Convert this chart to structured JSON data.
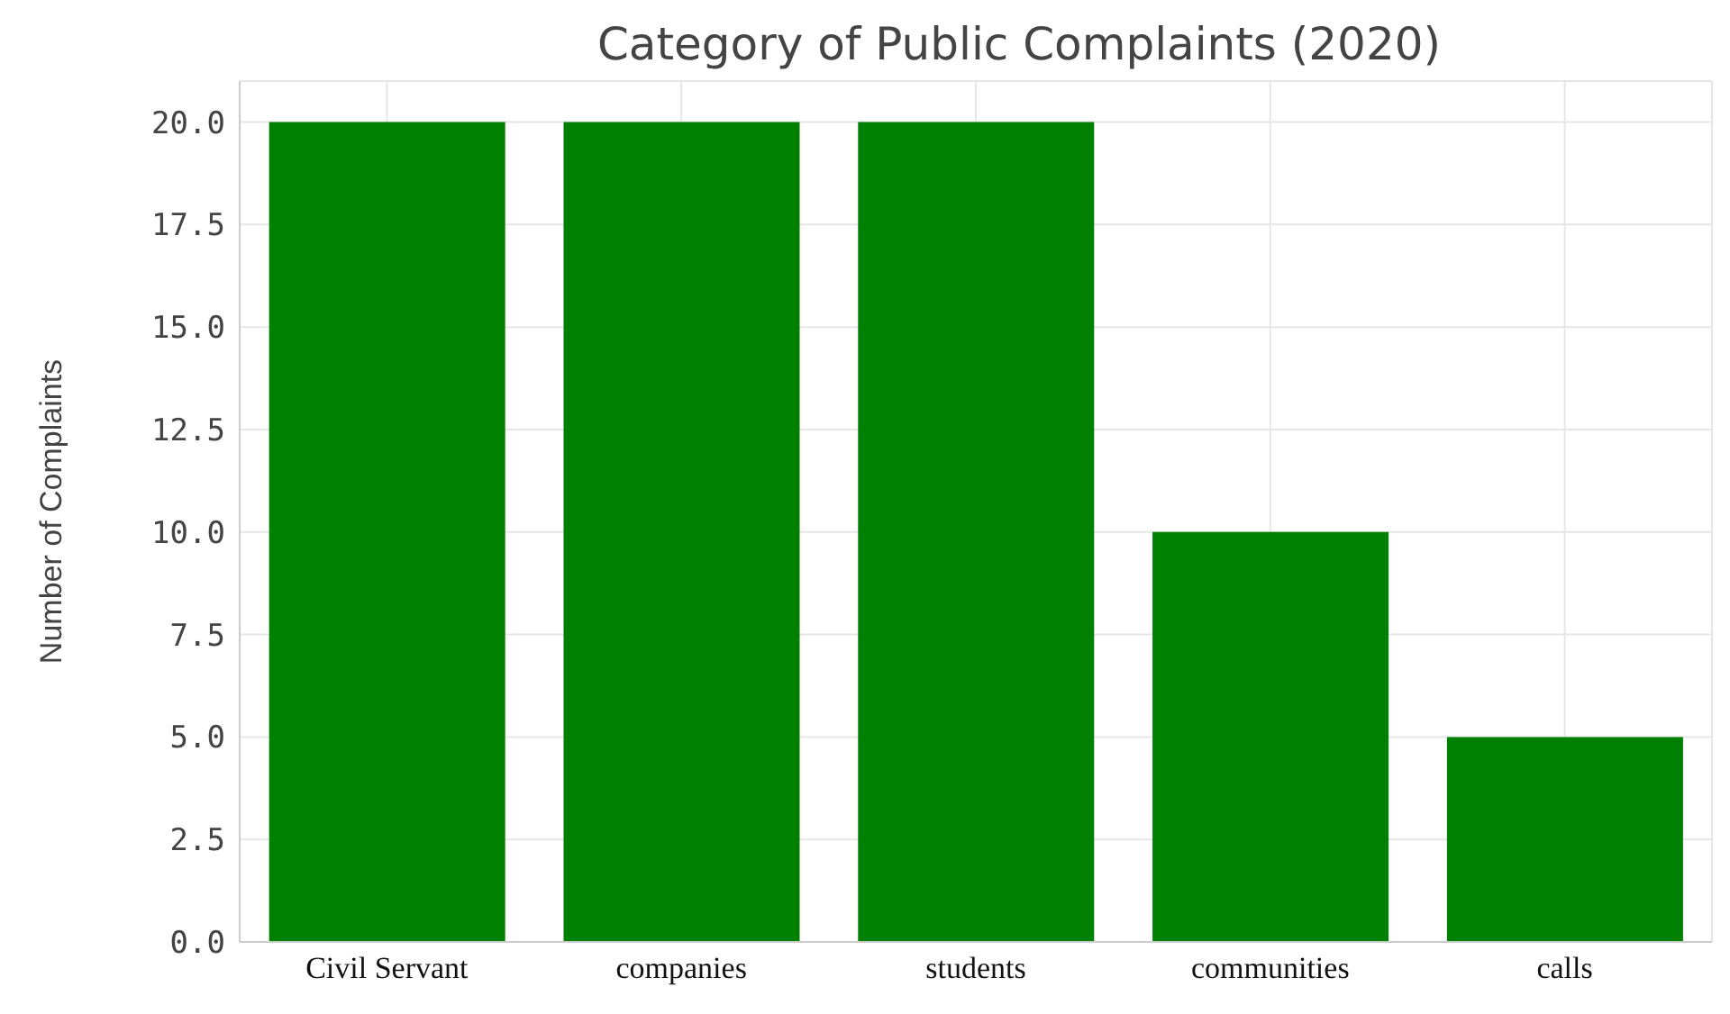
{
  "chart_data": {
    "type": "bar",
    "title": "Category of Public Complaints (2020)",
    "ylabel": "Number of Complaints",
    "categories": [
      "Civil Servant",
      "companies",
      "students",
      "communities",
      "calls"
    ],
    "values": [
      20,
      20,
      20,
      10,
      5
    ],
    "color": "#008000",
    "ylim": [
      0,
      21
    ],
    "yticks": [
      {
        "value": 0,
        "label": "0.0"
      },
      2.5,
      {
        "value": 5,
        "label": "5.0"
      },
      7.5,
      {
        "value": 10,
        "label": "10.0"
      },
      12.5,
      {
        "value": 15,
        "label": "15.0"
      },
      17.5,
      {
        "value": 20,
        "label": "20.0"
      }
    ],
    "grid": true
  }
}
